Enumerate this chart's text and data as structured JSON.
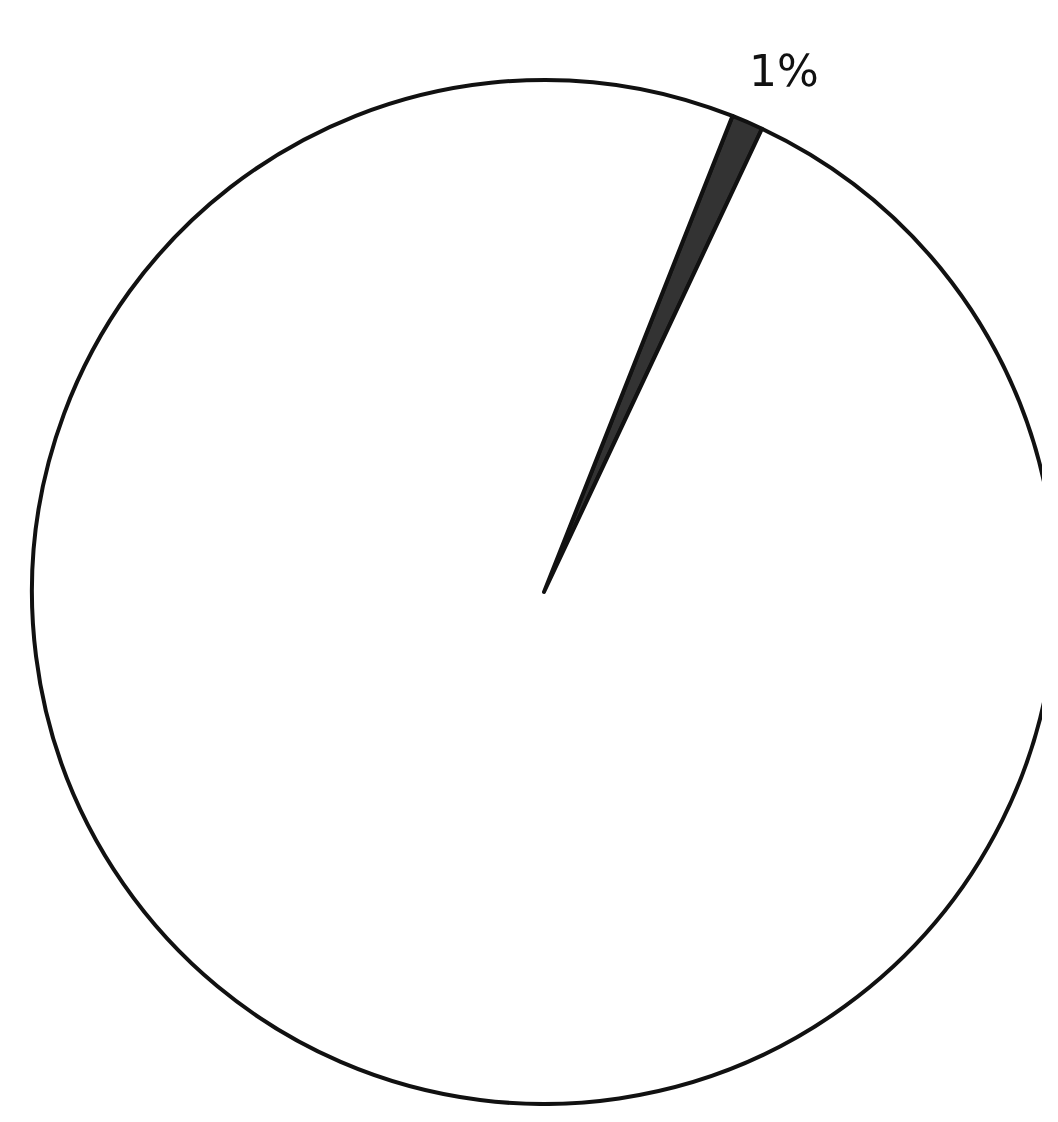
{
  "chart_data": {
    "type": "pie",
    "categories": [
      null,
      null
    ],
    "values": [
      1,
      99
    ],
    "colors": [
      "#333333",
      "#ffffff"
    ],
    "value_labels": [
      "1%",
      null
    ]
  }
}
